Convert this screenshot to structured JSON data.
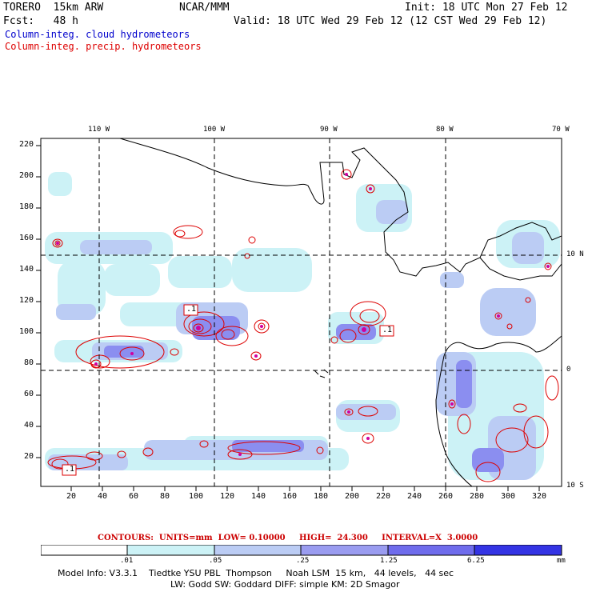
{
  "header": {
    "model": "TORERO  15km ARW",
    "org": "NCAR/MMM",
    "init": "Init: 18 UTC Mon 27 Feb 12",
    "fcst": "Fcst:   48 h",
    "valid": "Valid: 18 UTC Wed 29 Feb 12 (12 CST Wed 29 Feb 12)"
  },
  "legend": {
    "cloud": "Column-integ. cloud hydrometeors",
    "precip": "Column-integ. precip. hydrometeors"
  },
  "map": {
    "top_lon_labels": [
      "110 W",
      "100 W",
      "90 W",
      "80 W",
      "70 W"
    ],
    "right_lat_labels": [
      "10 N",
      "0",
      "10 S"
    ],
    "y_ticks": [
      "220",
      "200",
      "180",
      "160",
      "140",
      "120",
      "100",
      "80",
      "60",
      "40",
      "20"
    ],
    "x_ticks": [
      "20",
      "40",
      "60",
      "80",
      "100",
      "120",
      "140",
      "160",
      "180",
      "200",
      "220",
      "240",
      "260",
      "280",
      "300",
      "320"
    ],
    "contour_labels": [
      ".1",
      ".1",
      ".1"
    ]
  },
  "contours_info": "CONTOURS:  UNITS=mm  LOW= 0.10000     HIGH=  24.300     INTERVAL=X  3.0000",
  "colorbar": {
    "labels": [
      ".01",
      ".05",
      ".25",
      "1.25",
      "6.25"
    ],
    "units": "mm",
    "colors": [
      "#ffffff",
      "#ccf2f6",
      "#bbccf4",
      "#9a9cf0",
      "#6f6cec",
      "#3434e4"
    ]
  },
  "footer": {
    "line1": "Model Info: V3.3.1    Tiedtke YSU PBL  Thompson     Noah LSM  15 km,   44 levels,   44 sec",
    "line2": "LW: Godd SW: Goddard DIFF: simple KM: 2D Smagor"
  }
}
